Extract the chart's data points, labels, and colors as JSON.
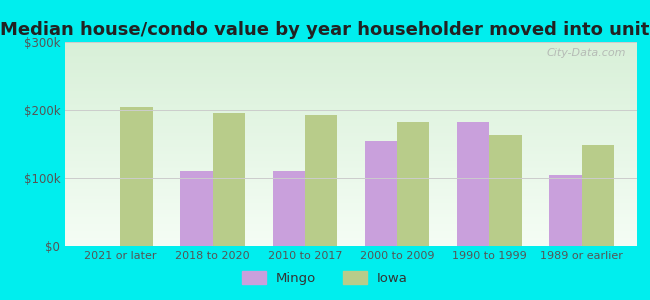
{
  "title": "Median house/condo value by year householder moved into unit",
  "categories": [
    "2021 or later",
    "2018 to 2020",
    "2010 to 2017",
    "2000 to 2009",
    "1990 to 1999",
    "1989 or earlier"
  ],
  "mingo_values": [
    0,
    110000,
    110000,
    155000,
    182000,
    105000
  ],
  "iowa_values": [
    205000,
    195000,
    193000,
    183000,
    163000,
    148000
  ],
  "mingo_color": "#c9a0dc",
  "iowa_color": "#b8cc8a",
  "outer_background": "#00eeee",
  "ylim": [
    0,
    300000
  ],
  "yticks": [
    0,
    100000,
    200000,
    300000
  ],
  "ytick_labels": [
    "$0",
    "$100k",
    "$200k",
    "$300k"
  ],
  "legend_labels": [
    "Mingo",
    "Iowa"
  ],
  "title_fontsize": 13,
  "watermark": "City-Data.com"
}
